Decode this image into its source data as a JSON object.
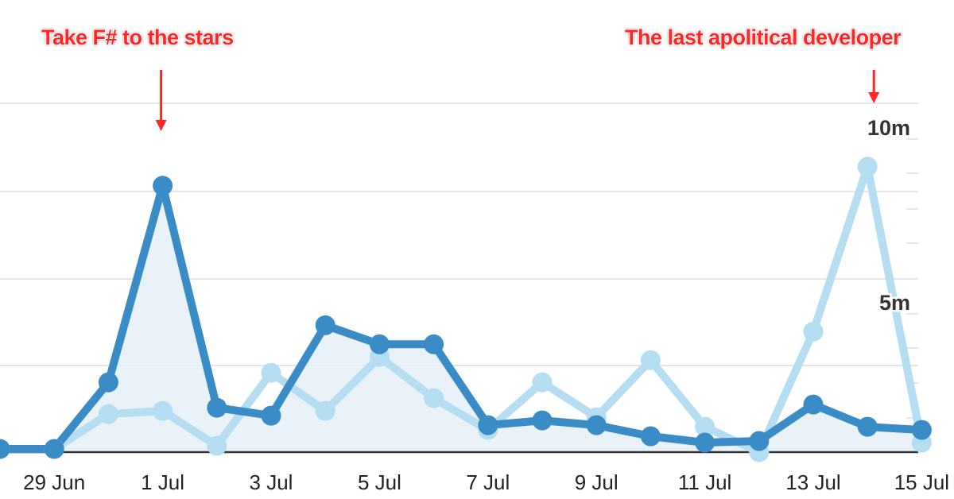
{
  "annotations": [
    {
      "text": "Take F# to the stars",
      "color": "#ff2626",
      "target_x": "1 Jul"
    },
    {
      "text": "The last apolitical developer",
      "color": "#ff2626",
      "target_x": "14 Jul"
    }
  ],
  "chart_data": {
    "type": "line",
    "x": [
      "28 Jun",
      "29 Jun",
      "30 Jun",
      "1 Jul",
      "2 Jul",
      "3 Jul",
      "4 Jul",
      "5 Jul",
      "6 Jul",
      "7 Jul",
      "8 Jul",
      "9 Jul",
      "10 Jul",
      "11 Jul",
      "12 Jul",
      "13 Jul",
      "14 Jul",
      "15 Jul"
    ],
    "x_tick_labels": [
      "29 Jun",
      "1 Jul",
      "3 Jul",
      "5 Jul",
      "7 Jul",
      "9 Jul",
      "11 Jul",
      "13 Jul",
      "15 Jul"
    ],
    "y_tick_labels": [
      {
        "value": 5,
        "label": "5m"
      },
      {
        "value": 10,
        "label": "10m"
      }
    ],
    "ylim": [
      0,
      11
    ],
    "grid": true,
    "series": [
      {
        "color": "#3a8cc6",
        "filled": true,
        "values": [
          0.1,
          0.1,
          2.2,
          8.4,
          1.4,
          1.15,
          4.0,
          3.4,
          3.4,
          0.85,
          1.0,
          0.85,
          0.5,
          0.3,
          0.35,
          1.5,
          0.8,
          0.7
        ]
      },
      {
        "color": "#b6def2",
        "filled": false,
        "values": [
          0.1,
          0.1,
          1.2,
          1.3,
          0.2,
          2.5,
          1.3,
          3.0,
          1.7,
          0.7,
          2.2,
          1.1,
          2.9,
          0.8,
          0.0,
          3.8,
          9.0,
          0.3
        ]
      }
    ]
  }
}
